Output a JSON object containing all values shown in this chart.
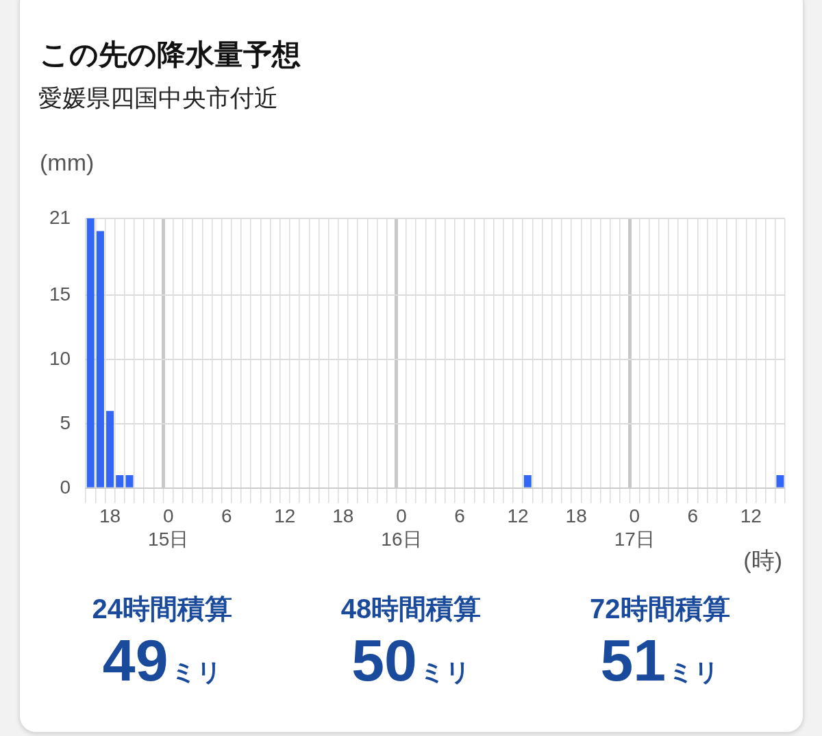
{
  "chart_data": [
    {
      "type": "bar",
      "title": "この先の降水量予想",
      "subtitle": "愛媛県四国中央市付近",
      "ylabel": "(mm)",
      "xlabel": "(時)",
      "categories": [
        null,
        null,
        "18",
        null,
        null,
        null,
        null,
        null,
        "0\n15日",
        null,
        null,
        null,
        null,
        null,
        "6",
        null,
        null,
        null,
        null,
        null,
        "12",
        null,
        null,
        null,
        null,
        null,
        "18",
        null,
        null,
        null,
        null,
        null,
        "0\n16日",
        null,
        null,
        null,
        null,
        null,
        "6",
        null,
        null,
        null,
        null,
        null,
        "12",
        null,
        null,
        null,
        null,
        null,
        "18",
        null,
        null,
        null,
        null,
        null,
        "0\n17日",
        null,
        null,
        null,
        null,
        null,
        "6",
        null,
        null,
        null,
        null,
        null,
        "12",
        null,
        null,
        null
      ],
      "values": [
        21,
        20,
        6,
        1,
        1,
        0,
        0,
        0,
        0,
        0,
        0,
        0,
        0,
        0,
        0,
        0,
        0,
        0,
        0,
        0,
        0,
        0,
        0,
        0,
        0,
        0,
        0,
        0,
        0,
        0,
        0,
        0,
        0,
        0,
        0,
        0,
        0,
        0,
        0,
        0,
        0,
        0,
        0,
        0,
        0,
        1,
        0,
        0,
        0,
        0,
        0,
        0,
        0,
        0,
        0,
        0,
        0,
        0,
        0,
        0,
        0,
        0,
        0,
        0,
        0,
        0,
        0,
        0,
        0,
        0,
        0,
        1
      ],
      "color": "#3366f5",
      "ylim": [
        0,
        21
      ],
      "yticks": [
        0,
        5,
        10,
        15,
        21
      ],
      "grid": true
    },
    {
      "type": "other",
      "categories": [
        "24時間積算",
        "48時間積算",
        "72時間積算"
      ],
      "values": [
        49,
        50,
        51
      ],
      "value_labels": [
        "49ミリ",
        "50ミリ",
        "51ミリ"
      ]
    }
  ]
}
